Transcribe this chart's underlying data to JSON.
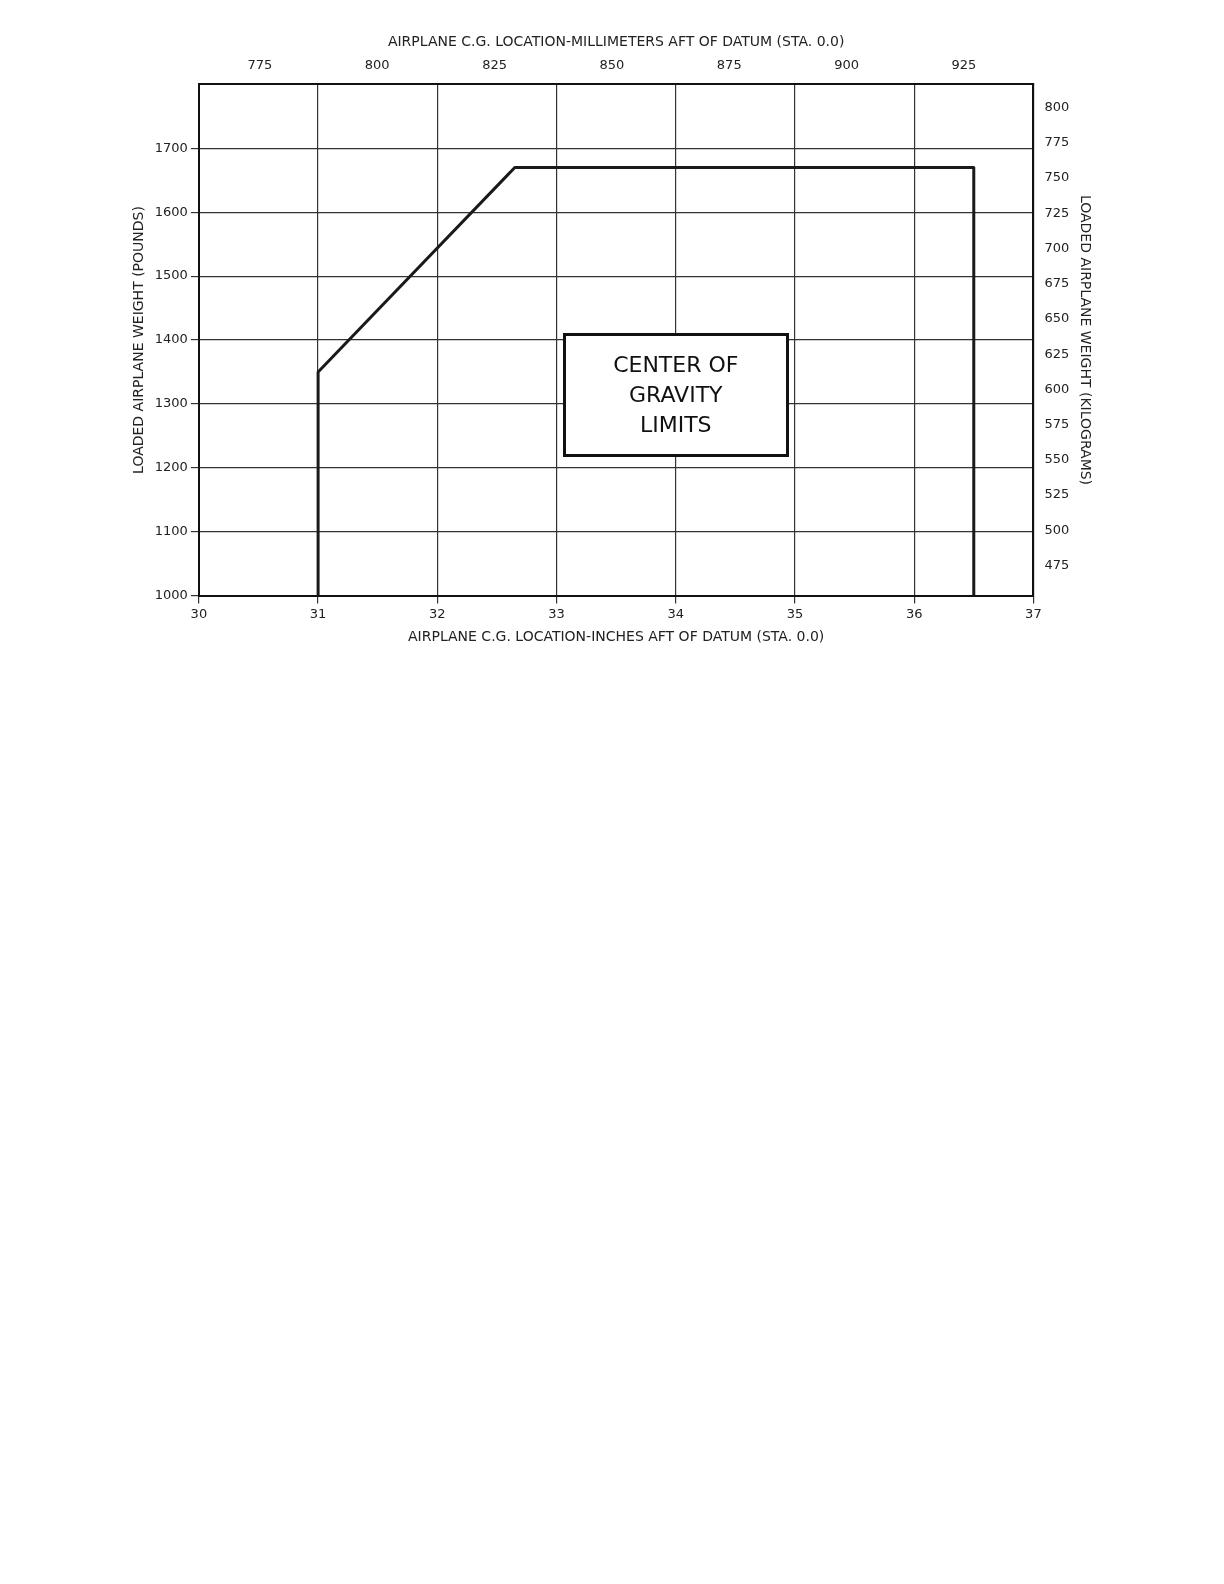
{
  "chart_data": {
    "type": "line",
    "xlabel": "AIRPLANE C.G. LOCATION-INCHES AFT OF DATUM (STA. 0.0)",
    "x2label": "AIRPLANE C.G. LOCATION-MILLIMETERS AFT OF DATUM (STA. 0.0)",
    "ylabel": "LOADED AIRPLANE WEIGHT (POUNDS)",
    "y2label": "LOADED AIRPLANE WEIGHT (KILOGRAMS)",
    "xlim": [
      30,
      37
    ],
    "xticks": [
      30,
      31,
      32,
      33,
      34,
      35,
      36,
      37
    ],
    "x2lim": [
      762,
      939.8
    ],
    "x2ticks": [
      775,
      800,
      825,
      850,
      875,
      900,
      925
    ],
    "ylim": [
      1000,
      1800
    ],
    "yticks": [
      1000,
      1100,
      1200,
      1300,
      1400,
      1500,
      1600,
      1700
    ],
    "y2lim": [
      453.6,
      816.5
    ],
    "y2ticks": [
      475,
      500,
      525,
      550,
      575,
      600,
      625,
      650,
      675,
      700,
      725,
      750,
      775,
      800
    ],
    "series": [
      {
        "color": "#1a1a1a",
        "x": [
          36.5,
          36.5,
          32.65,
          31,
          31
        ],
        "values": [
          1000,
          1670,
          1670,
          1350,
          1000
        ]
      }
    ],
    "annotations": [
      "CENTER OF GRAVITY LIMITS"
    ],
    "grid": true,
    "legend": false,
    "marker": "none",
    "line_style": "solid"
  }
}
